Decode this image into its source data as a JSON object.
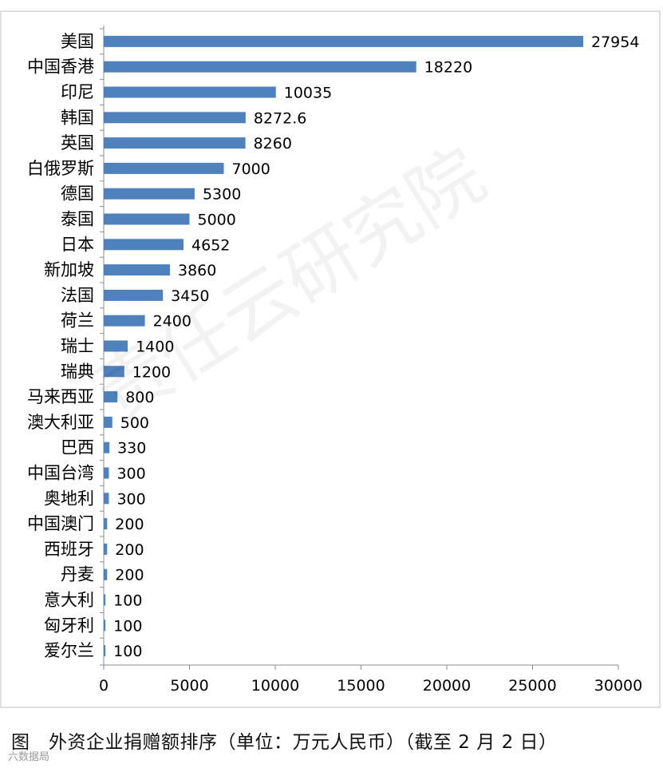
{
  "caption": "图　外资企业捐赠额排序（单位：万元人民币）（截至 2 月 2 日）",
  "bottom_watermark": "六数据局",
  "background_watermark": "责任云研究院",
  "colors": {
    "bar": "#4f81bd",
    "axis": "#8c8c8c",
    "border": "#bfbfbf",
    "text": "#000000"
  },
  "chart_data": {
    "type": "bar",
    "orientation": "horizontal",
    "categories": [
      "美国",
      "中国香港",
      "印尼",
      "韩国",
      "英国",
      "白俄罗斯",
      "德国",
      "泰国",
      "日本",
      "新加坡",
      "法国",
      "荷兰",
      "瑞士",
      "瑞典",
      "马来西亚",
      "澳大利亚",
      "巴西",
      "中国台湾",
      "奥地利",
      "中国澳门",
      "西班牙",
      "丹麦",
      "意大利",
      "匈牙利",
      "爱尔兰"
    ],
    "values": [
      27954,
      18220,
      10035,
      8272.6,
      8260,
      7000,
      5300,
      5000,
      4652,
      3860,
      3450,
      2400,
      1400,
      1200,
      800,
      500,
      330,
      300,
      300,
      200,
      200,
      200,
      100,
      100,
      100
    ],
    "value_labels": [
      "27954",
      "18220",
      "10035",
      "8272.6",
      "8260",
      "7000",
      "5300",
      "5000",
      "4652",
      "3860",
      "3450",
      "2400",
      "1400",
      "1200",
      "800",
      "500",
      "330",
      "300",
      "300",
      "200",
      "200",
      "200",
      "100",
      "100",
      "100"
    ],
    "xlim": [
      0,
      30000
    ],
    "xticks": [
      0,
      5000,
      10000,
      15000,
      20000,
      25000,
      30000
    ],
    "xtick_labels": [
      "0",
      "5000",
      "10000",
      "15000",
      "20000",
      "25000",
      "30000"
    ],
    "grid": false,
    "legend": "none"
  }
}
